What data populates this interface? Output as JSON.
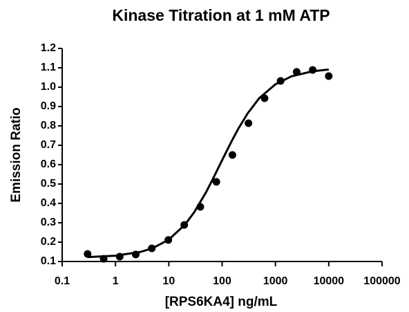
{
  "chart_data": {
    "type": "scatter",
    "title": "Kinase Titration at 1 mM ATP",
    "x_label": "[RPS6KA4] ng/mL",
    "y_label": "Emission Ratio",
    "xscale": "log",
    "x": [
      0.3,
      0.6,
      1.2,
      2.4,
      4.8,
      9.8,
      19.5,
      39,
      78,
      156,
      312,
      625,
      1250,
      2500,
      5000,
      10000
    ],
    "values": [
      0.139,
      0.114,
      0.125,
      0.136,
      0.168,
      0.211,
      0.289,
      0.382,
      0.511,
      0.65,
      0.814,
      0.943,
      1.032,
      1.079,
      1.089,
      1.057
    ],
    "color": "#000000",
    "fit": {
      "x": [
        0.3,
        1,
        3,
        5,
        10,
        20,
        30,
        50,
        70,
        100,
        150,
        200,
        300,
        500,
        1000,
        2000,
        5000,
        10000
      ],
      "y": [
        0.123,
        0.13,
        0.15,
        0.169,
        0.213,
        0.29,
        0.355,
        0.458,
        0.536,
        0.623,
        0.72,
        0.784,
        0.864,
        0.944,
        1.015,
        1.056,
        1.082,
        1.091
      ]
    },
    "xlim": [
      0.1,
      100000
    ],
    "xticks": [
      0.1,
      1,
      10,
      100,
      1000,
      10000,
      100000
    ],
    "ylim": [
      0.1,
      1.2
    ],
    "yticks": [
      0.1,
      0.2,
      0.3,
      0.4,
      0.5,
      0.6,
      0.7,
      0.8,
      0.9,
      {
        "value": 1,
        "label": "1.0"
      },
      1.1,
      1.2
    ]
  }
}
